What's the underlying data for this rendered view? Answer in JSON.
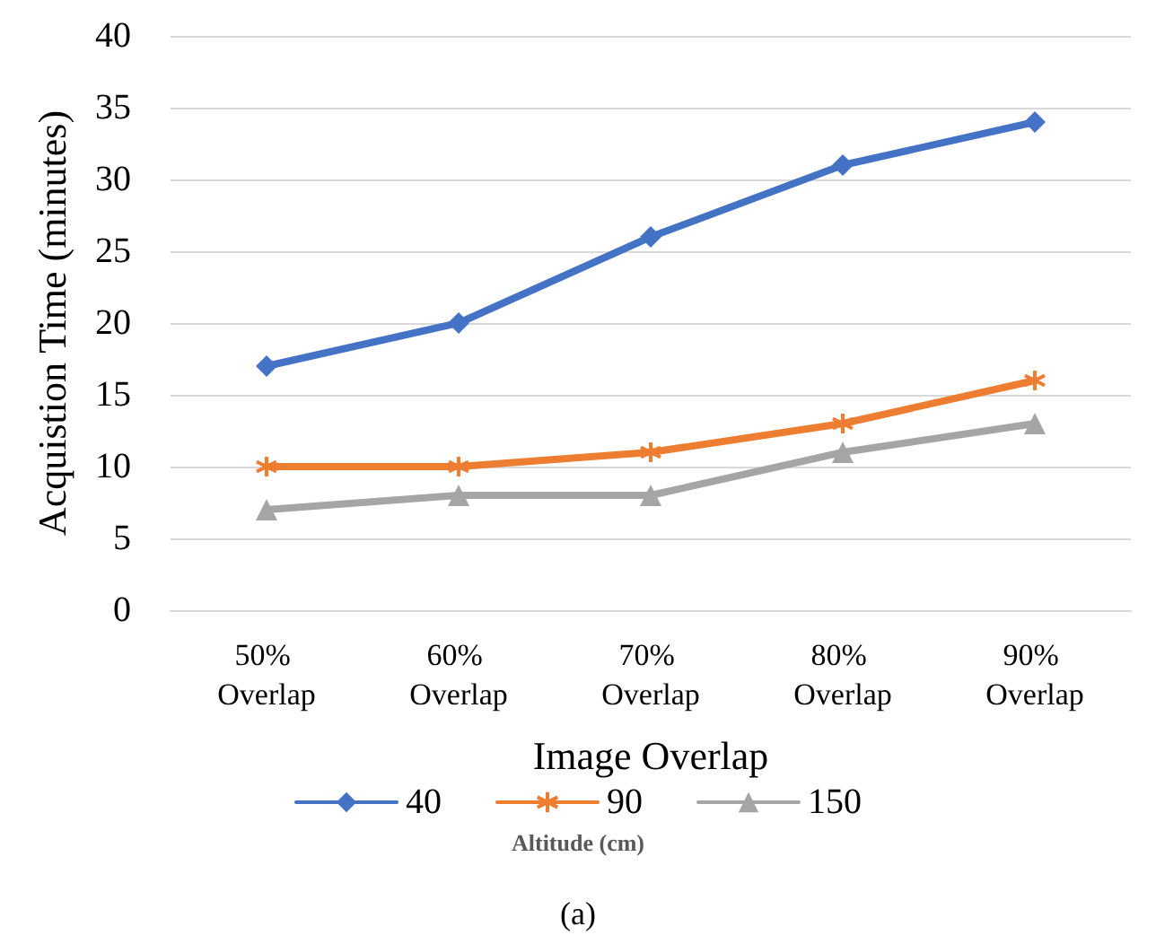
{
  "chart_data": {
    "type": "line",
    "xlabel": "Image Overlap",
    "ylabel": "Acquistion Time (minutes)",
    "legend_title": "Altitude (cm)",
    "annotations": [
      "(a)"
    ],
    "categories": [
      "50% Overlap",
      "60% Overlap",
      "70% Overlap",
      "80% Overlap",
      "90% Overlap"
    ],
    "series": [
      {
        "name": "40",
        "color": "#4472c4",
        "marker": "diamond",
        "values": [
          17,
          20,
          26,
          31,
          34
        ]
      },
      {
        "name": "90",
        "color": "#ed7d31",
        "marker": "cross",
        "values": [
          10,
          10,
          11,
          13,
          16
        ]
      },
      {
        "name": "150",
        "color": "#a5a5a5",
        "marker": "triangle",
        "values": [
          7,
          8,
          8,
          11,
          13
        ]
      }
    ],
    "ylim": [
      0,
      40
    ],
    "yticks": [
      0,
      5,
      10,
      15,
      20,
      25,
      30,
      35,
      40
    ],
    "grid": "y",
    "legend": "bottom",
    "line_style": "solid"
  }
}
